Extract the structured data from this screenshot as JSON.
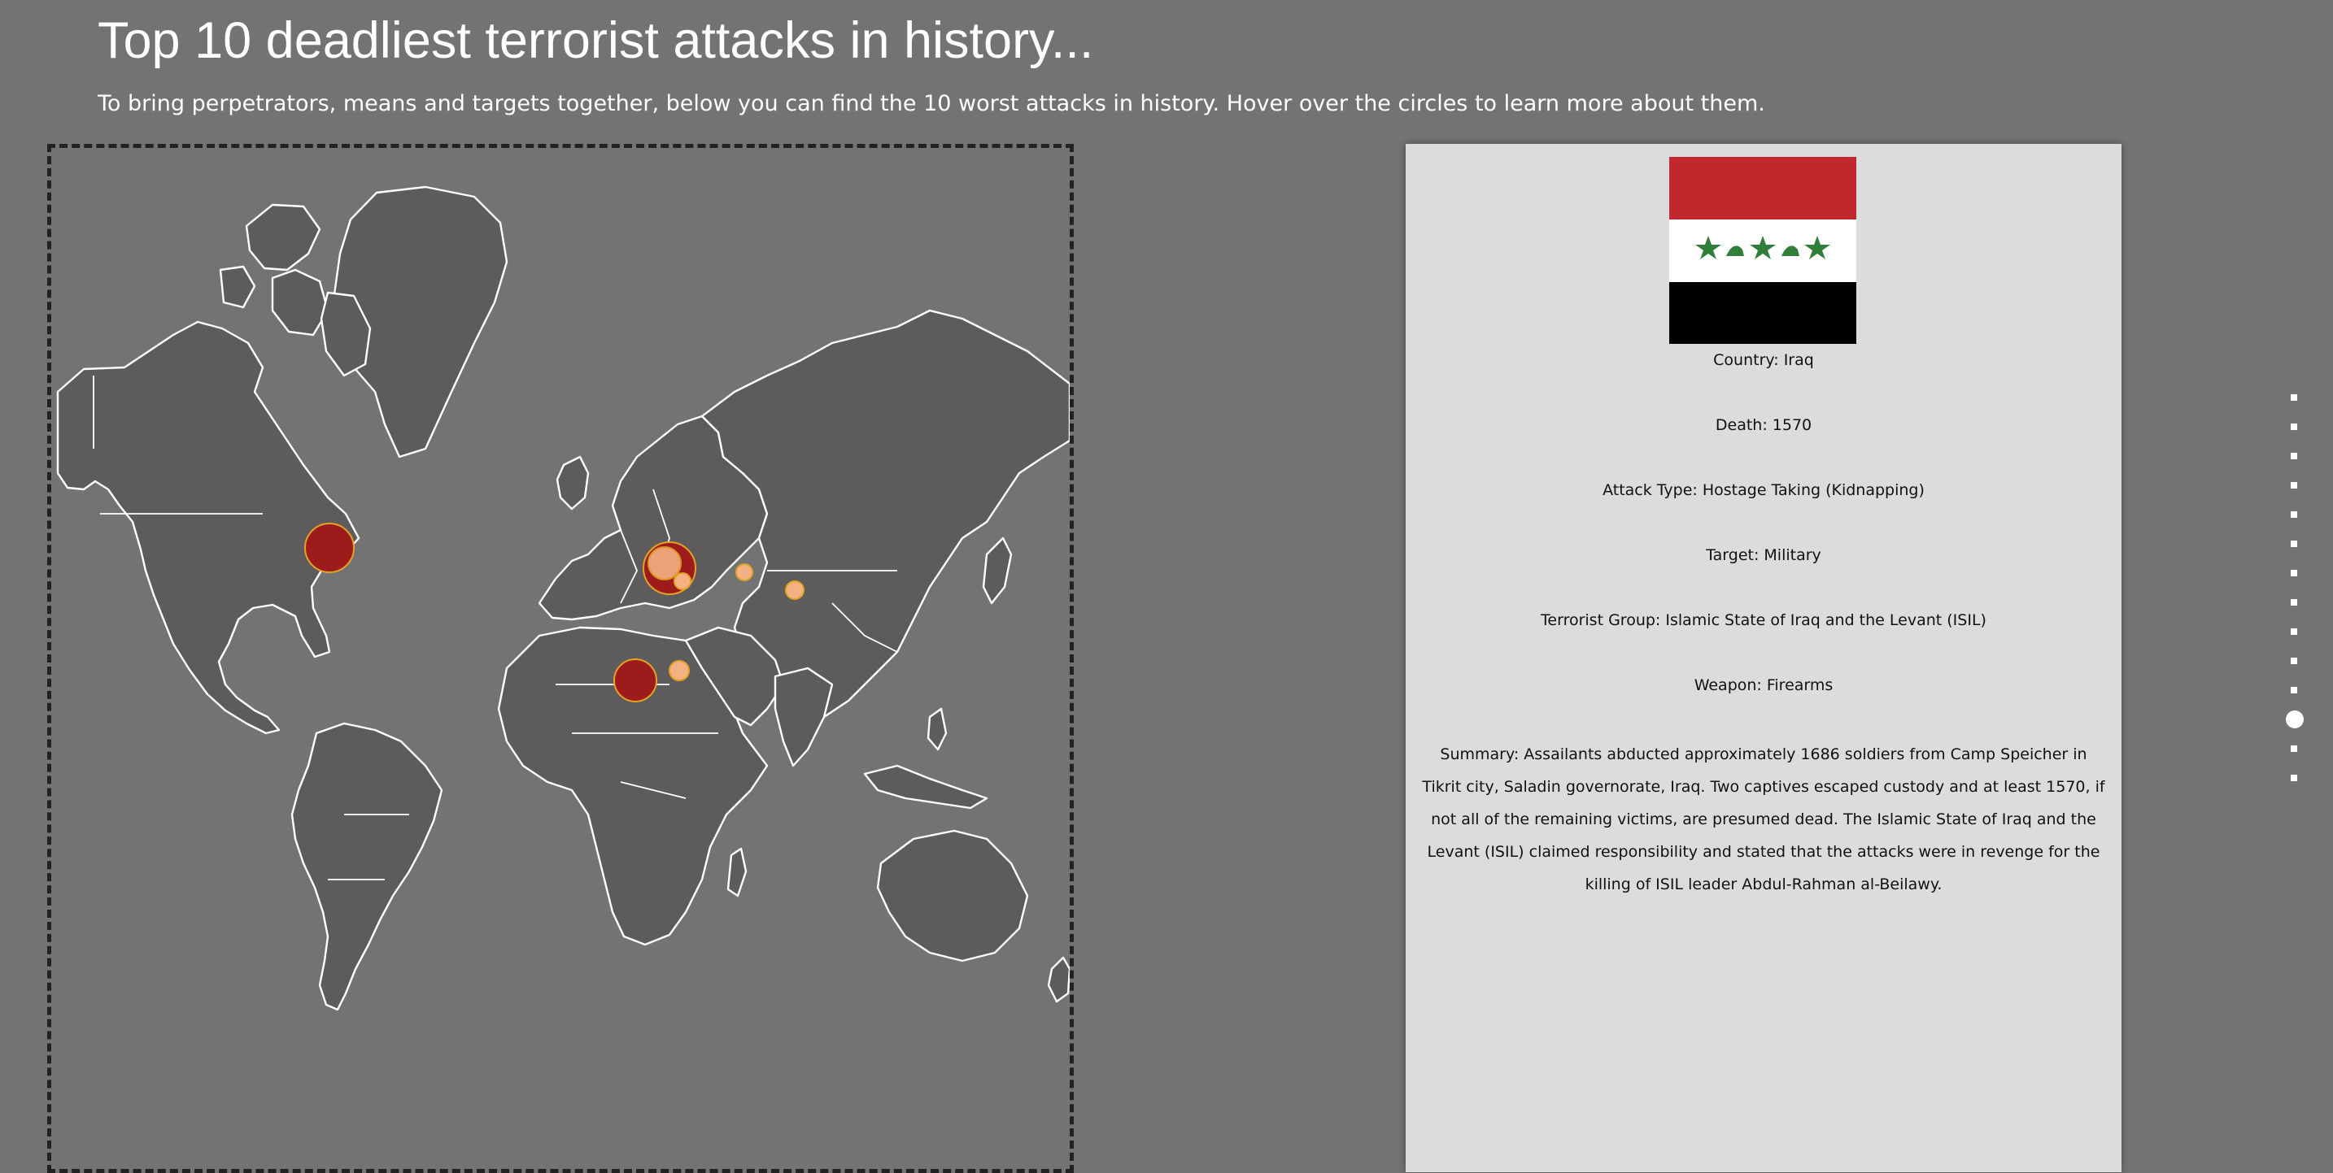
{
  "header": {
    "title": "Top 10 deadliest terrorist attacks in history...",
    "subtitle": "To bring perpetrators, means and targets together, below you can find the 10 worst attacks in history. Hover over the circles to learn more about them."
  },
  "colors": {
    "background": "#737373",
    "land": "#5d5b5c",
    "border": "#ffffff",
    "circle_large": "#9e1b1b",
    "circle_outline": "#e3a322",
    "circle_small": "#f4b183",
    "panel_background": "#dcdcdc",
    "flag_red": "#ce1126",
    "flag_green": "#2f7f3a"
  },
  "map": {
    "attacks": [
      {
        "location": "United States",
        "size": "large",
        "color": "#9e1b1b"
      },
      {
        "location": "Iraq",
        "size": "large",
        "color": "#9e1b1b"
      },
      {
        "location": "Iraq",
        "size": "medium",
        "color": "#f4b183"
      },
      {
        "location": "Iraq",
        "size": "small",
        "color": "#f4b183"
      },
      {
        "location": "Iran",
        "size": "small",
        "color": "#f4b183"
      },
      {
        "location": "Nepal",
        "size": "small",
        "color": "#f4b183"
      },
      {
        "location": "Democratic Republic of the Congo",
        "size": "large",
        "color": "#9e1b1b"
      },
      {
        "location": "Ethiopia",
        "size": "small",
        "color": "#f4b183"
      }
    ]
  },
  "info_panel": {
    "flag_icon": "iraq-flag",
    "country": "Country: Iraq",
    "death": "Death: 1570",
    "attack_type": "Attack Type: Hostage Taking (Kidnapping)",
    "target": "Target: Military",
    "group": "Terrorist Group: Islamic State of Iraq and the Levant (ISIL)",
    "weapon": "Weapon: Firearms",
    "summary": "Summary: Assailants abducted approximately 1686 soldiers from Camp Speicher in Tikrit city, Saladin governorate, Iraq. Two captives escaped custody and at least 1570, if not all of the remaining victims, are presumed dead. The Islamic State of Iraq and the Levant (ISIL) claimed responsibility and stated that the attacks were in revenge for the killing of ISIL leader Abdul-Rahman al-Beilawy."
  },
  "navigation": {
    "dot_count": 14,
    "active_index": 11
  }
}
